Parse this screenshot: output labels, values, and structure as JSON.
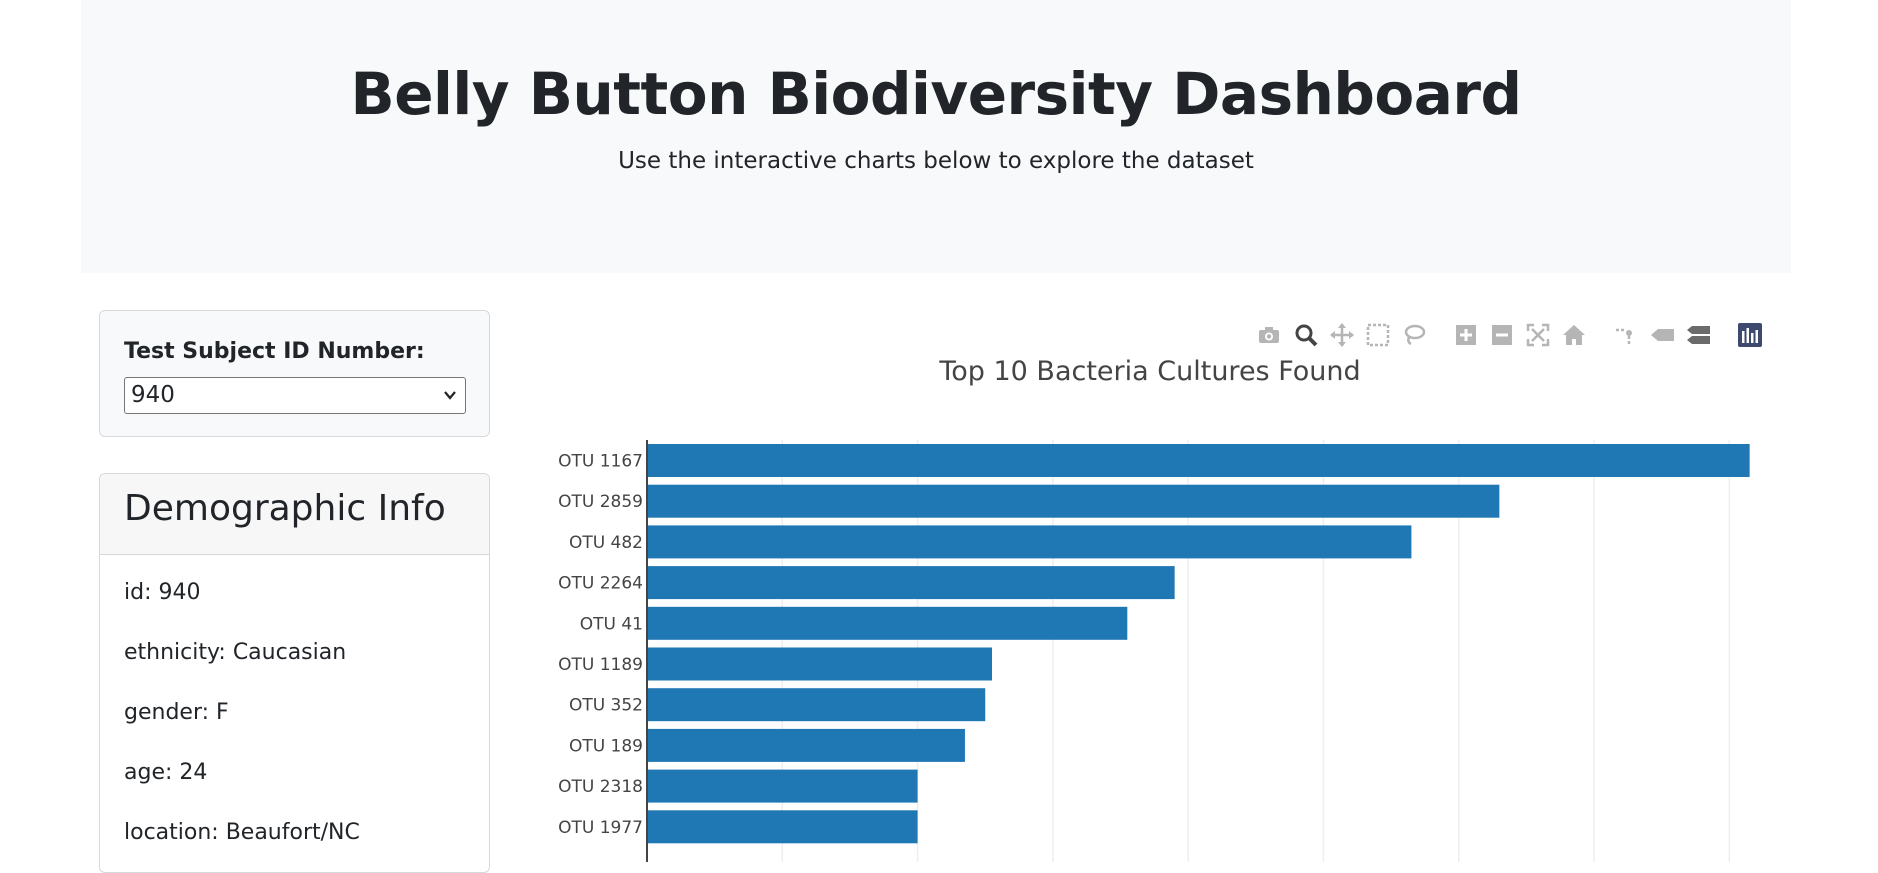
{
  "header": {
    "title": "Belly Button Biodiversity Dashboard",
    "subtitle": "Use the interactive charts below to explore the dataset"
  },
  "selector": {
    "label": "Test Subject ID Number:",
    "value": "940"
  },
  "demographics": {
    "heading": "Demographic Info",
    "rows": [
      "id: 940",
      "ethnicity: Caucasian",
      "gender: F",
      "age: 24",
      "location: Beaufort/NC"
    ]
  },
  "toolbar": {
    "icons": [
      "camera-icon",
      "zoom-icon",
      "pan-icon",
      "box-select-icon",
      "lasso-select-icon",
      "zoom-in-icon",
      "zoom-out-icon",
      "autoscale-icon",
      "reset-axes-icon",
      "spike-lines-icon",
      "hover-closest-icon",
      "hover-compare-icon",
      "plotly-logo-icon"
    ]
  },
  "chart_data": {
    "type": "bar",
    "orientation": "horizontal",
    "title": "Top 10 Bacteria Cultures Found",
    "categories": [
      "OTU 1167",
      "OTU 2859",
      "OTU 482",
      "OTU 2264",
      "OTU 41",
      "OTU 1189",
      "OTU 352",
      "OTU 189",
      "OTU 2318",
      "OTU 1977"
    ],
    "values": [
      163,
      126,
      113,
      78,
      71,
      51,
      50,
      47,
      40,
      40
    ],
    "xlim": [
      0,
      170
    ],
    "grid": true,
    "color": "#1f77b4"
  }
}
